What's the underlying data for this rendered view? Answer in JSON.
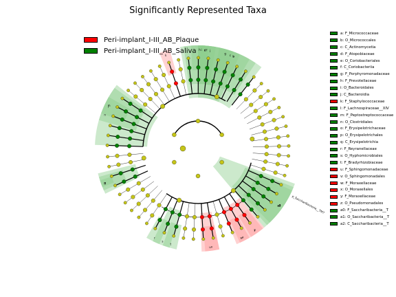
{
  "chart_data": {
    "type": "cladogram",
    "title": "Significantly Represented Taxa",
    "legend": {
      "placement": "top-left",
      "entries": [
        {
          "name": "Peri-implant_I-III_AB_Plaque",
          "color": "#ff0000"
        },
        {
          "name": "Peri-implant_I-III_AB_Saliva",
          "color": "#008000"
        }
      ]
    },
    "colors": {
      "node": "#c5c518",
      "plaque": "#ff0000",
      "saliva": "#008000",
      "plaque_shade": "#ff9a9a",
      "saliva_shade": "#8fcf8f"
    },
    "taxa": [
      {
        "code": "a",
        "label": "F_Micrococcaceae",
        "group": "saliva"
      },
      {
        "code": "b",
        "label": "O_Micrococcales",
        "group": "saliva"
      },
      {
        "code": "c",
        "label": "C_Actinomycetia",
        "group": "saliva"
      },
      {
        "code": "d",
        "label": "F_Atopobiaceae",
        "group": "saliva"
      },
      {
        "code": "e",
        "label": "O_Coriobacteriales",
        "group": "saliva"
      },
      {
        "code": "f",
        "label": "C_Coriobacteriia",
        "group": "saliva"
      },
      {
        "code": "g",
        "label": "F_Porphyromonadaceae",
        "group": "saliva"
      },
      {
        "code": "h",
        "label": "F_Prevotellaceae",
        "group": "saliva"
      },
      {
        "code": "i",
        "label": "O_Bacteroidales",
        "group": "saliva"
      },
      {
        "code": "j",
        "label": "C_Bacteroidia",
        "group": "saliva"
      },
      {
        "code": "k",
        "label": "F_Staphylococcaceae",
        "group": "plaque"
      },
      {
        "code": "l",
        "label": "F_Lachnospiraceae__XIV",
        "group": "saliva"
      },
      {
        "code": "m",
        "label": "F_Peptostreptococcaceae",
        "group": "saliva"
      },
      {
        "code": "n",
        "label": "O_Clostridiales",
        "group": "saliva"
      },
      {
        "code": "o",
        "label": "F_Erysipelotrichaceae",
        "group": "saliva"
      },
      {
        "code": "p",
        "label": "O_Erysipelotrichales",
        "group": "saliva"
      },
      {
        "code": "q",
        "label": "C_Erysipelotrichia",
        "group": "saliva"
      },
      {
        "code": "r",
        "label": "F_Reyranellaceae",
        "group": "saliva"
      },
      {
        "code": "s",
        "label": "O_Hyphomicrobiales",
        "group": "saliva"
      },
      {
        "code": "t",
        "label": "F_Bradyrhizobiaceae",
        "group": "saliva"
      },
      {
        "code": "u",
        "label": "F_Sphingomonadaceae",
        "group": "plaque"
      },
      {
        "code": "v",
        "label": "O_Sphingomonadales",
        "group": "plaque"
      },
      {
        "code": "w",
        "label": "F_Moraxellaceae",
        "group": "plaque"
      },
      {
        "code": "x",
        "label": "O_Moraxellales",
        "group": "plaque"
      },
      {
        "code": "y",
        "label": "F_Moraxellaceae",
        "group": "plaque"
      },
      {
        "code": "z",
        "label": "O_Pseudomonadales",
        "group": "plaque"
      },
      {
        "code": "a0",
        "label": "F_Saccharibacteria__T",
        "group": "saliva"
      },
      {
        "code": "a1",
        "label": "O_Saccharibacteria__T",
        "group": "saliva"
      },
      {
        "code": "a2",
        "label": "C_Saccharibacteria__T",
        "group": "saliva"
      }
    ],
    "clade_labels": [
      {
        "text": "p_Saccharibacteria__TM7"
      }
    ]
  }
}
